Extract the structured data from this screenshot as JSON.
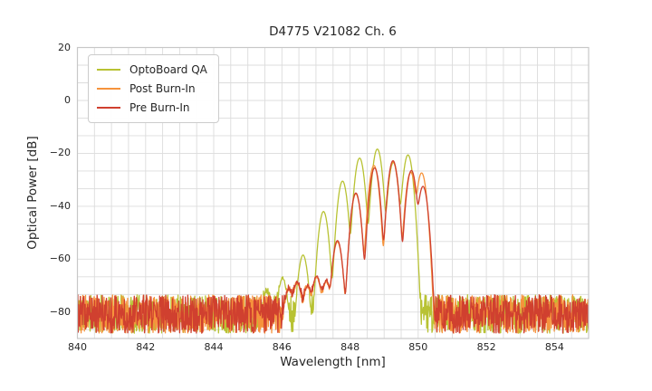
{
  "figure": {
    "title": "D4775 V21082 Ch. 6",
    "xlabel": "Wavelength [nm]",
    "ylabel": "Optical Power [dB]"
  },
  "legend": {
    "position": "upper left",
    "items": [
      {
        "label": "OptoBoard QA",
        "color": "#b8c233"
      },
      {
        "label": "Post Burn-In",
        "color": "#f6933c"
      },
      {
        "label": "Pre Burn-In",
        "color": "#d0402f"
      }
    ]
  },
  "axes": {
    "x_tick_labels": [
      "840",
      "842",
      "844",
      "846",
      "848",
      "850",
      "852",
      "854"
    ],
    "x_tick_values": [
      840,
      842,
      844,
      846,
      848,
      850,
      852,
      854
    ],
    "y_tick_labels": [
      "20",
      "0",
      "−20",
      "−40",
      "−60",
      "−80"
    ],
    "y_tick_values": [
      20,
      0,
      -20,
      -40,
      -60,
      -80
    ]
  },
  "chart_data": {
    "type": "line",
    "title": "D4775 V21082 Ch. 6",
    "xlabel": "Wavelength [nm]",
    "ylabel": "Optical Power [dB]",
    "xlim": [
      840,
      855
    ],
    "ylim": [
      -90,
      20
    ],
    "x_ticks": [
      840,
      842,
      844,
      846,
      848,
      850,
      852,
      854
    ],
    "y_ticks": [
      20,
      0,
      -20,
      -40,
      -60,
      -80
    ],
    "grid": {
      "visible": true,
      "x_step_nm": 0.5,
      "y_step_db": 6.667,
      "color": "#dcdcdc"
    },
    "mode_width_nm": 0.1,
    "noise_floor_db": {
      "min": -88,
      "max": -73.5
    },
    "legend_position": "upper left",
    "series": [
      {
        "name": "OptoBoard QA",
        "color": "#b8c233",
        "seed": 11,
        "noise_range_nm": [
          840,
          855
        ],
        "mode_peaks_nm_db": [
          [
            845.55,
            -73
          ],
          [
            846.02,
            -67.5
          ],
          [
            846.62,
            -58.5
          ],
          [
            847.22,
            -42
          ],
          [
            847.78,
            -30.5
          ],
          [
            848.28,
            -21.8
          ],
          [
            848.8,
            -18.4
          ],
          [
            849.27,
            -23.5
          ],
          [
            849.7,
            -20.6
          ]
        ]
      },
      {
        "name": "Post Burn-In",
        "color": "#f6933c",
        "seed": 23,
        "noise_range_nm": [
          840,
          855
        ],
        "mode_peaks_nm_db": [
          [
            846.2,
            -72
          ],
          [
            846.45,
            -69.5
          ],
          [
            846.75,
            -71
          ],
          [
            847.02,
            -67
          ],
          [
            847.3,
            -69
          ],
          [
            847.63,
            -53.5
          ],
          [
            848.17,
            -35.3
          ],
          [
            848.7,
            -24.6
          ],
          [
            849.26,
            -23.2
          ],
          [
            849.78,
            -27.2
          ],
          [
            850.1,
            -27.4
          ]
        ]
      },
      {
        "name": "Pre Burn-In",
        "color": "#d0402f",
        "seed": 37,
        "noise_range_nm": [
          840,
          855
        ],
        "mode_peaks_nm_db": [
          [
            846.2,
            -72
          ],
          [
            846.45,
            -69
          ],
          [
            846.75,
            -70.5
          ],
          [
            847.02,
            -66.5
          ],
          [
            847.3,
            -68.5
          ],
          [
            847.63,
            -53
          ],
          [
            848.17,
            -35
          ],
          [
            848.72,
            -25.5
          ],
          [
            849.26,
            -22.8
          ],
          [
            849.8,
            -26.5
          ],
          [
            850.14,
            -32.5
          ]
        ]
      }
    ]
  }
}
